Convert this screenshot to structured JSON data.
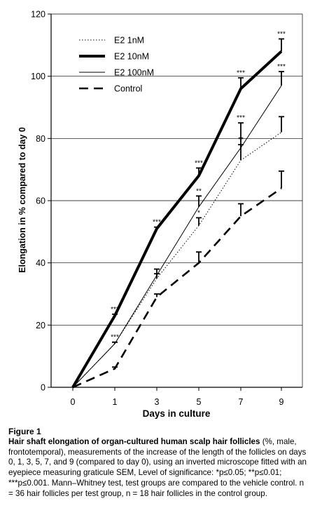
{
  "chart_data": {
    "type": "line",
    "x": [
      0,
      1,
      3,
      5,
      7,
      9
    ],
    "xlabel": "Days in culture",
    "ylabel": "Elongation in % compared to day 0",
    "ylim": [
      0,
      120
    ],
    "yticks": [
      0,
      20,
      40,
      60,
      80,
      100,
      120
    ],
    "grid": "horizontal",
    "legend_position": "top-left",
    "series": [
      {
        "name": "E2 1nM",
        "style": "dotted",
        "values": [
          0,
          14,
          35,
          52,
          73,
          82
        ],
        "error": [
          0,
          0.5,
          1.5,
          2.5,
          5,
          5
        ],
        "significance": [
          "",
          "***",
          "",
          "*",
          "**",
          ""
        ]
      },
      {
        "name": "E2 10nM",
        "style": "thick",
        "values": [
          0,
          23,
          51,
          68,
          96,
          108
        ],
        "error": [
          0,
          0.5,
          0.5,
          2.5,
          3.5,
          4
        ],
        "significance": [
          "",
          "***",
          "***",
          "***",
          "***",
          "***"
        ]
      },
      {
        "name": "E2 100nM",
        "style": "thin",
        "values": [
          0,
          14,
          36,
          58,
          77,
          97
        ],
        "error": [
          0,
          0.5,
          2,
          3.5,
          8,
          4.5
        ],
        "significance": [
          "",
          "",
          "",
          "**",
          "***",
          "***"
        ]
      },
      {
        "name": "Control",
        "style": "dashed",
        "values": [
          0,
          6,
          29,
          40,
          55,
          64
        ],
        "error": [
          0,
          0.5,
          1,
          3.5,
          4,
          5.5
        ],
        "significance": [
          "",
          "",
          "",
          "",
          "",
          ""
        ]
      }
    ]
  },
  "caption": {
    "label": "Figure 1",
    "title": "Hair shaft elongation of organ-cultured human scalp hair follicles",
    "text": " (%, male, frontotemporal), measurements of the increase of the length of the follicles on days 0, 1, 3, 5, 7, and 9 (compared to day 0), using an inverted microscope fitted with an eyepiece measuring graticule SEM, Level of significance: *p≤0.05; **p≤0.01; ***p≤0.001. Mann–Whitney test, test groups are compared to the vehicle control. n = 36 hair follicles per test group, n = 18 hair follicles in the control group."
  }
}
